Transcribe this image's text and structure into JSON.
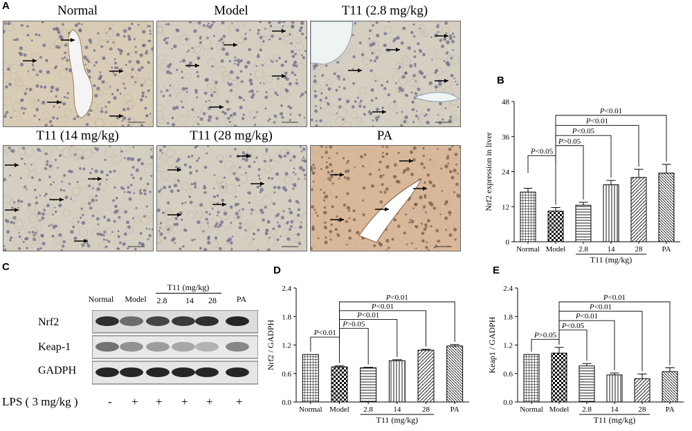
{
  "panels": {
    "A": "A",
    "B": "B",
    "C": "C",
    "D": "D",
    "E": "E"
  },
  "histology": {
    "titles": [
      "Normal",
      "Model",
      "T11 (2.8 mg/kg)",
      "T11 (14 mg/kg)",
      "T11 (28 mg/kg)",
      "PA"
    ]
  },
  "western": {
    "columns": [
      "Normal",
      "Model",
      "2.8",
      "14",
      "28",
      "PA"
    ],
    "group_label": "T11 (mg/kg)",
    "bands": [
      "Nrf2",
      "Keap-1",
      "GADPH"
    ],
    "lps_label": "LPS ( 3 mg/kg )",
    "lps_marks": [
      "-",
      "+",
      "+",
      "+",
      "+",
      "+"
    ]
  },
  "chart_data": [
    {
      "id": "B",
      "type": "bar",
      "categories": [
        "Normal",
        "Model",
        "2.8",
        "14",
        "28",
        "PA"
      ],
      "values": [
        17,
        10.5,
        12.5,
        19.5,
        22,
        23.5
      ],
      "errors": [
        1.3,
        1.2,
        1.0,
        1.5,
        2.8,
        3.0
      ],
      "ylabel": "Nrf2 expression in liver",
      "xlabel": "T11 (mg/kg)",
      "ylim": [
        0,
        48
      ],
      "yticks": [
        "0",
        "12",
        "24",
        "36",
        "48"
      ],
      "annotations": [
        {
          "from": 0,
          "to": 1,
          "label": "P<0.05"
        },
        {
          "from": 1,
          "to": 3,
          "label": "P<0.05"
        },
        {
          "from": 1,
          "to": 2,
          "label": "P>0.05"
        },
        {
          "from": 1,
          "to": 4,
          "label": "P<0.01"
        },
        {
          "from": 1,
          "to": 5,
          "label": "P<0.01"
        }
      ]
    },
    {
      "id": "D",
      "type": "bar",
      "categories": [
        "Normal",
        "Model",
        "2.8",
        "14",
        "28",
        "PA"
      ],
      "values": [
        1.0,
        0.74,
        0.72,
        0.87,
        1.09,
        1.18
      ],
      "errors": [
        0.0,
        0.02,
        0.01,
        0.02,
        0.02,
        0.03
      ],
      "ylabel": "Nrf2 / GADPH",
      "xlabel": "T11 (mg/kg)",
      "ylim": [
        0,
        2.4
      ],
      "yticks": [
        "0.0",
        "0.6",
        "1.2",
        "1.8",
        "2.4"
      ],
      "annotations": [
        {
          "from": 0,
          "to": 1,
          "label": "P<0.01"
        },
        {
          "from": 1,
          "to": 2,
          "label": "P>0.05"
        },
        {
          "from": 1,
          "to": 3,
          "label": "P<0.01"
        },
        {
          "from": 1,
          "to": 4,
          "label": "P<0.01"
        },
        {
          "from": 1,
          "to": 5,
          "label": "P<0.01"
        }
      ]
    },
    {
      "id": "E",
      "type": "bar",
      "categories": [
        "Normal",
        "Model",
        "2.8",
        "14",
        "28",
        "PA"
      ],
      "values": [
        1.0,
        1.03,
        0.76,
        0.57,
        0.49,
        0.64
      ],
      "errors": [
        0.0,
        0.12,
        0.05,
        0.04,
        0.1,
        0.08
      ],
      "ylabel": "Keap1 / GADPH",
      "xlabel": "T11 (mg/kg)",
      "ylim": [
        0,
        2.4
      ],
      "yticks": [
        "0.0",
        "0.6",
        "1.2",
        "1.8",
        "2.4"
      ],
      "annotations": [
        {
          "from": 0,
          "to": 1,
          "label": "P>0.05"
        },
        {
          "from": 1,
          "to": 2,
          "label": "P<0.05"
        },
        {
          "from": 1,
          "to": 3,
          "label": "P<0.01"
        },
        {
          "from": 1,
          "to": 4,
          "label": "P<0.01"
        },
        {
          "from": 1,
          "to": 5,
          "label": "P<0.01"
        }
      ]
    }
  ]
}
